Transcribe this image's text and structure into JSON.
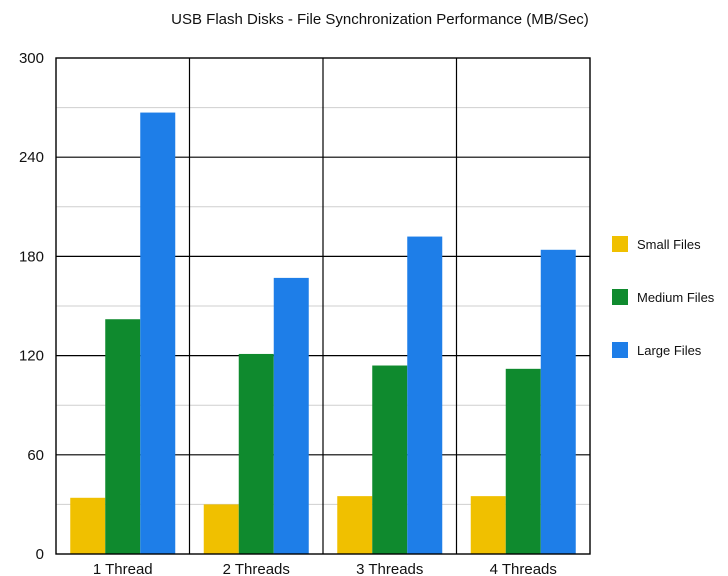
{
  "chart_data": {
    "type": "bar",
    "title": "USB Flash Disks - File Synchronization Performance (MB/Sec)",
    "xlabel": "",
    "ylabel": "",
    "categories": [
      "1 Thread",
      "2 Threads",
      "3 Threads",
      "4 Threads"
    ],
    "series": [
      {
        "name": "Small Files",
        "color": "#f0c000",
        "values": [
          34,
          30,
          35,
          35
        ]
      },
      {
        "name": "Medium Files",
        "color": "#0f8a2e",
        "values": [
          142,
          121,
          114,
          112
        ]
      },
      {
        "name": "Large Files",
        "color": "#1e7ee8",
        "values": [
          267,
          167,
          192,
          184
        ]
      }
    ],
    "ylim": [
      0,
      300
    ],
    "yticks": [
      0,
      60,
      120,
      180,
      240,
      300
    ],
    "minor_grid_step": 30,
    "grid": true,
    "legend_position": "right"
  }
}
